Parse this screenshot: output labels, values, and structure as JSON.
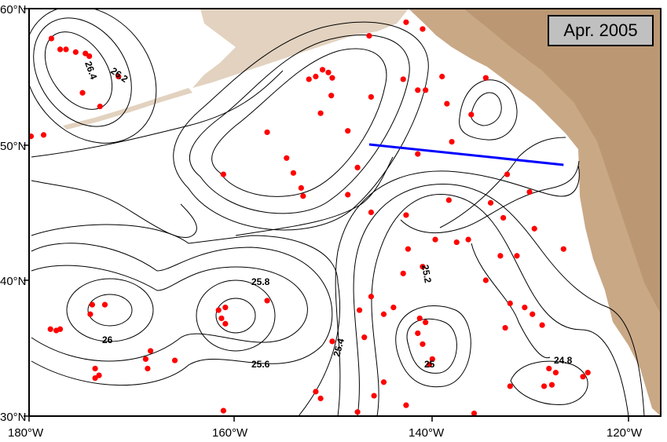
{
  "map": {
    "date_label": "Apr. 2005",
    "lat_labels": [
      "60°N",
      "50°N",
      "40°N",
      "30°N"
    ],
    "lon_labels": [
      "180°W",
      "160°W",
      "140°W",
      "120°W"
    ],
    "contour_labels": [
      "26.4",
      "26.2",
      "26",
      "25.8",
      "25.6",
      "25.4",
      "25.2",
      "25",
      "24.8"
    ],
    "colors": {
      "land": "#c9a886",
      "land_light": "#e2d2bf",
      "contour": "#000000",
      "section_line": "#0000ff",
      "float": "#ff0000",
      "label_box": "#c0c0c0"
    },
    "section_line": {
      "start": {
        "lon": -145,
        "lat": 50.0
      },
      "end": {
        "lon": -125,
        "lat": 48.5
      }
    },
    "floats": [
      {
        "lon": -177.7,
        "lat": 57.8
      },
      {
        "lon": -176.8,
        "lat": 57.0
      },
      {
        "lon": -176.2,
        "lat": 57.0
      },
      {
        "lon": -175.2,
        "lat": 56.8
      },
      {
        "lon": -174.2,
        "lat": 56.7
      },
      {
        "lon": -173.8,
        "lat": 56.5
      },
      {
        "lon": -174.5,
        "lat": 53.8
      },
      {
        "lon": -172.7,
        "lat": 52.8
      },
      {
        "lon": -170.8,
        "lat": 55.0
      },
      {
        "lon": -178.5,
        "lat": 50.7
      },
      {
        "lon": -179.8,
        "lat": 50.6
      },
      {
        "lon": -149.8,
        "lat": 55.5
      },
      {
        "lon": -149.2,
        "lat": 55.3
      },
      {
        "lon": -150.5,
        "lat": 55.0
      },
      {
        "lon": -148.8,
        "lat": 54.9
      },
      {
        "lon": -151.2,
        "lat": 54.8
      },
      {
        "lon": -148.9,
        "lat": 53.6
      },
      {
        "lon": -150.0,
        "lat": 52.3
      },
      {
        "lon": -147.2,
        "lat": 51.0
      },
      {
        "lon": -155.5,
        "lat": 50.9
      },
      {
        "lon": -153.5,
        "lat": 49.0
      },
      {
        "lon": -152.8,
        "lat": 47.9
      },
      {
        "lon": -152.0,
        "lat": 46.8
      },
      {
        "lon": -151.8,
        "lat": 46.2
      },
      {
        "lon": -147.2,
        "lat": 46.3
      },
      {
        "lon": -146.2,
        "lat": 48.3
      },
      {
        "lon": -160.0,
        "lat": 47.8
      },
      {
        "lon": -144.8,
        "lat": 53.5
      },
      {
        "lon": -141.5,
        "lat": 54.8
      },
      {
        "lon": -140.0,
        "lat": 54.0
      },
      {
        "lon": -139.2,
        "lat": 54.0
      },
      {
        "lon": -141.2,
        "lat": 59.0
      },
      {
        "lon": -139.5,
        "lat": 58.5
      },
      {
        "lon": -137.5,
        "lat": 55.0
      },
      {
        "lon": -137.0,
        "lat": 53.0
      },
      {
        "lon": -134.5,
        "lat": 52.2
      },
      {
        "lon": -136.5,
        "lat": 50.2
      },
      {
        "lon": -140.0,
        "lat": 49.3
      },
      {
        "lon": -141.2,
        "lat": 44.8
      },
      {
        "lon": -144.8,
        "lat": 45.0
      },
      {
        "lon": -141.0,
        "lat": 42.3
      },
      {
        "lon": -139.5,
        "lat": 41.0
      },
      {
        "lon": -141.5,
        "lat": 40.5
      },
      {
        "lon": -136.8,
        "lat": 45.9
      },
      {
        "lon": -134.8,
        "lat": 43.0
      },
      {
        "lon": -132.5,
        "lat": 45.7
      },
      {
        "lon": -131.2,
        "lat": 44.6
      },
      {
        "lon": -131.5,
        "lat": 41.8
      },
      {
        "lon": -129.8,
        "lat": 41.8
      },
      {
        "lon": -130.8,
        "lat": 47.8
      },
      {
        "lon": -128.5,
        "lat": 46.5
      },
      {
        "lon": -128.0,
        "lat": 43.8
      },
      {
        "lon": -125.0,
        "lat": 42.3
      },
      {
        "lon": -133.0,
        "lat": 40.0
      },
      {
        "lon": -136.0,
        "lat": 42.8
      },
      {
        "lon": -138.2,
        "lat": 43.0
      },
      {
        "lon": -144.8,
        "lat": 38.8
      },
      {
        "lon": -146.0,
        "lat": 37.8
      },
      {
        "lon": -143.5,
        "lat": 37.5
      },
      {
        "lon": -142.5,
        "lat": 38.0
      },
      {
        "lon": -139.8,
        "lat": 37.2
      },
      {
        "lon": -139.2,
        "lat": 36.9
      },
      {
        "lon": -140.0,
        "lat": 36.1
      },
      {
        "lon": -139.5,
        "lat": 35.3
      },
      {
        "lon": -138.5,
        "lat": 34.2
      },
      {
        "lon": -138.8,
        "lat": 33.8
      },
      {
        "lon": -145.5,
        "lat": 35.8
      },
      {
        "lon": -148.8,
        "lat": 35.5
      },
      {
        "lon": -144.5,
        "lat": 31.5
      },
      {
        "lon": -143.5,
        "lat": 32.5
      },
      {
        "lon": -141.2,
        "lat": 30.8
      },
      {
        "lon": -131.0,
        "lat": 36.5
      },
      {
        "lon": -129.0,
        "lat": 38.0
      },
      {
        "lon": -128.2,
        "lat": 37.5
      },
      {
        "lon": -130.5,
        "lat": 38.3
      },
      {
        "lon": -127.2,
        "lat": 36.7
      },
      {
        "lon": -126.5,
        "lat": 33.5
      },
      {
        "lon": -125.8,
        "lat": 33.2
      },
      {
        "lon": -126.2,
        "lat": 32.3
      },
      {
        "lon": -127.0,
        "lat": 32.2
      },
      {
        "lon": -123.0,
        "lat": 32.9
      },
      {
        "lon": -122.5,
        "lat": 33.2
      },
      {
        "lon": -134.2,
        "lat": 30.2
      },
      {
        "lon": -130.5,
        "lat": 32.2
      },
      {
        "lon": -150.5,
        "lat": 31.8
      },
      {
        "lon": -150.0,
        "lat": 31.3
      },
      {
        "lon": -146.2,
        "lat": 30.3
      },
      {
        "lon": -160.0,
        "lat": 30.4
      },
      {
        "lon": -155.5,
        "lat": 38.5
      },
      {
        "lon": -160.5,
        "lat": 37.8
      },
      {
        "lon": -159.8,
        "lat": 38.0
      },
      {
        "lon": -160.2,
        "lat": 37.2
      },
      {
        "lon": -159.8,
        "lat": 36.8
      },
      {
        "lon": -165.0,
        "lat": 34.1
      },
      {
        "lon": -167.5,
        "lat": 34.8
      },
      {
        "lon": -168.0,
        "lat": 34.2
      },
      {
        "lon": -167.8,
        "lat": 33.5
      },
      {
        "lon": -173.5,
        "lat": 38.2
      },
      {
        "lon": -172.2,
        "lat": 38.2
      },
      {
        "lon": -173.7,
        "lat": 37.5
      },
      {
        "lon": -177.8,
        "lat": 36.4
      },
      {
        "lon": -177.2,
        "lat": 36.3
      },
      {
        "lon": -176.8,
        "lat": 36.4
      },
      {
        "lon": -173.2,
        "lat": 33.5
      },
      {
        "lon": -172.8,
        "lat": 33.0
      },
      {
        "lon": -173.2,
        "lat": 32.8
      },
      {
        "lon": -133.0,
        "lat": 54.9
      },
      {
        "lon": -145.0,
        "lat": 58.0
      }
    ]
  }
}
